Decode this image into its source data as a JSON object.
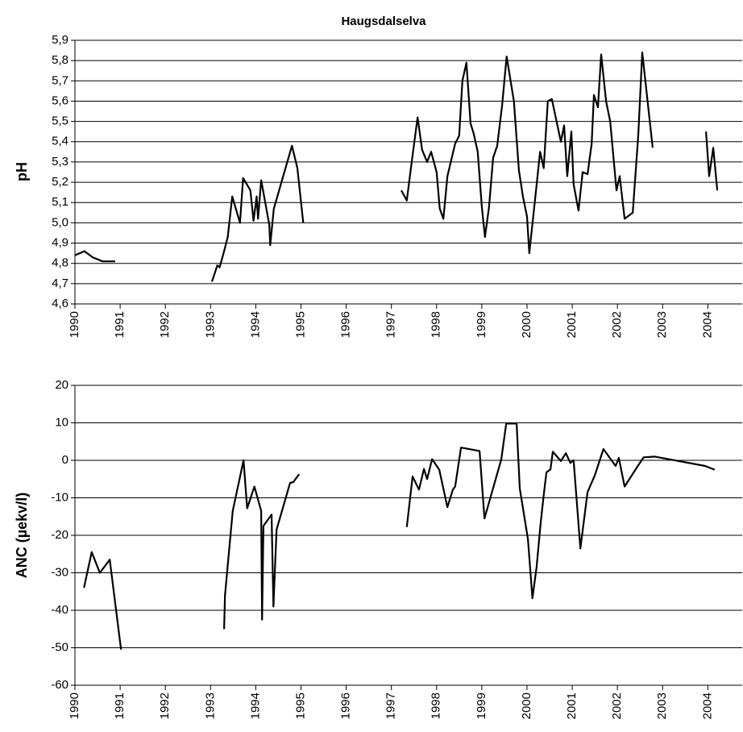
{
  "chart_data": [
    {
      "type": "line",
      "title": "Haugsdalselva",
      "y_label": "pH",
      "color": "#000000",
      "grid": true,
      "xlim": [
        1990,
        2004.76
      ],
      "xticks": [
        1990,
        1991,
        1992,
        1993,
        1994,
        1995,
        1996,
        1997,
        1998,
        1999,
        2000,
        2001,
        2002,
        2003,
        2004
      ],
      "ylim": [
        4.6,
        5.9
      ],
      "yticks": [
        {
          "value": 4.6,
          "label": "4,6"
        },
        {
          "value": 4.7,
          "label": "4,7"
        },
        {
          "value": 4.8,
          "label": "4,8"
        },
        {
          "value": 4.9,
          "label": "4,9"
        },
        {
          "value": 5.0,
          "label": "5,0"
        },
        {
          "value": 5.1,
          "label": "5,1"
        },
        {
          "value": 5.2,
          "label": "5,2"
        },
        {
          "value": 5.3,
          "label": "5,3"
        },
        {
          "value": 5.4,
          "label": "5,4"
        },
        {
          "value": 5.5,
          "label": "5,5"
        },
        {
          "value": 5.6,
          "label": "5,6"
        },
        {
          "value": 5.7,
          "label": "5,7"
        },
        {
          "value": 5.8,
          "label": "5,8"
        },
        {
          "value": 5.9,
          "label": "5,9"
        }
      ],
      "x": [
        1990.0,
        1990.21,
        1990.39,
        1990.61,
        1990.89,
        null,
        1993.03,
        1993.15,
        1993.2,
        1993.3,
        1993.38,
        1993.48,
        1993.65,
        1993.72,
        1993.88,
        1993.95,
        1994.02,
        1994.05,
        1994.12,
        1994.3,
        1994.32,
        1994.4,
        1994.8,
        1994.92,
        1995.05,
        null,
        1997.22,
        1997.34,
        1997.45,
        1997.58,
        1997.68,
        1997.79,
        1997.88,
        1998.0,
        1998.07,
        1998.15,
        1998.24,
        1998.41,
        1998.5,
        1998.57,
        1998.66,
        1998.75,
        1998.82,
        1998.91,
        1999.0,
        1999.07,
        1999.16,
        1999.25,
        1999.34,
        1999.45,
        1999.55,
        1999.71,
        1999.82,
        1999.91,
        2000.0,
        2000.05,
        2000.18,
        2000.29,
        2000.37,
        2000.46,
        2000.55,
        2000.75,
        2000.82,
        2000.89,
        2000.98,
        2001.03,
        2001.14,
        2001.23,
        2001.34,
        2001.43,
        2001.48,
        2001.57,
        2001.64,
        2001.75,
        2001.84,
        2001.98,
        2002.05,
        2002.16,
        2002.34,
        2002.46,
        2002.55,
        2002.78,
        null,
        2003.96,
        2004.03,
        2004.12,
        2004.21
      ],
      "values": [
        4.84,
        4.86,
        4.83,
        4.81,
        4.81,
        null,
        4.71,
        4.79,
        4.78,
        4.86,
        4.93,
        5.13,
        5.0,
        5.22,
        5.16,
        5.01,
        5.13,
        5.02,
        5.21,
        4.99,
        4.89,
        5.07,
        5.38,
        5.27,
        5.0,
        null,
        5.16,
        5.11,
        5.3,
        5.52,
        5.36,
        5.3,
        5.35,
        5.25,
        5.07,
        5.02,
        5.23,
        5.39,
        5.43,
        5.7,
        5.79,
        5.49,
        5.44,
        5.35,
        5.08,
        4.93,
        5.08,
        5.32,
        5.38,
        5.58,
        5.82,
        5.6,
        5.26,
        5.13,
        5.03,
        4.85,
        5.12,
        5.35,
        5.27,
        5.6,
        5.61,
        5.4,
        5.48,
        5.23,
        5.45,
        5.19,
        5.06,
        5.25,
        5.24,
        5.39,
        5.63,
        5.57,
        5.83,
        5.6,
        5.5,
        5.16,
        5.23,
        5.02,
        5.05,
        5.43,
        5.84,
        5.37,
        null,
        5.45,
        5.23,
        5.37,
        5.16
      ]
    },
    {
      "type": "line",
      "y_label": "ANC (µekv/l)",
      "color": "#000000",
      "grid": true,
      "xlim": [
        1990,
        2004.76
      ],
      "xticks": [
        1990,
        1991,
        1992,
        1993,
        1994,
        1995,
        1996,
        1997,
        1998,
        1999,
        2000,
        2001,
        2002,
        2003,
        2004
      ],
      "ylim": [
        -60,
        20
      ],
      "yticks": [
        -60,
        -50,
        -40,
        -30,
        -20,
        -10,
        0,
        10,
        20
      ],
      "x": [
        1990.2,
        1990.37,
        1990.55,
        1990.77,
        1991.02,
        null,
        1993.3,
        1993.32,
        1993.49,
        1993.73,
        1993.81,
        1993.97,
        1994.12,
        1994.14,
        1994.17,
        1994.35,
        1994.39,
        1994.46,
        1994.76,
        1994.83,
        1994.96,
        null,
        1997.34,
        1997.47,
        1997.61,
        1997.72,
        1997.79,
        1997.9,
        1998.06,
        1998.24,
        1998.36,
        1998.41,
        1998.54,
        1998.95,
        1999.06,
        1999.43,
        1999.54,
        1999.77,
        1999.84,
        2000.02,
        2000.12,
        2000.21,
        2000.3,
        2000.37,
        2000.43,
        2000.52,
        2000.57,
        2000.75,
        2000.86,
        2000.96,
        2001.03,
        2001.18,
        2001.34,
        2001.5,
        2001.69,
        2001.96,
        2002.03,
        2002.16,
        2002.44,
        2002.58,
        2002.83,
        2003.94,
        2004.15
      ],
      "values": [
        -34,
        -24.5,
        -30,
        -26.5,
        -50.5,
        null,
        -45,
        -36,
        -13.5,
        0,
        -12.8,
        -7,
        -13.5,
        -42.5,
        -17.5,
        -14.5,
        -39,
        -18.5,
        -6,
        -5.8,
        -3.7,
        null,
        -17.8,
        -4.3,
        -7.8,
        -2.3,
        -5,
        0.3,
        -2.5,
        -12.5,
        -7.8,
        -7,
        3.4,
        2.5,
        -15.5,
        0.2,
        9.8,
        9.8,
        -7.5,
        -21,
        -36.8,
        -28.6,
        -17,
        -9.3,
        -3.2,
        -2.4,
        2.3,
        -0.2,
        1.9,
        -0.7,
        0,
        -23.5,
        -8.5,
        -4,
        3,
        -1.5,
        0.6,
        -7,
        -1.7,
        0.8,
        1,
        -1.5,
        -2.5
      ]
    }
  ]
}
